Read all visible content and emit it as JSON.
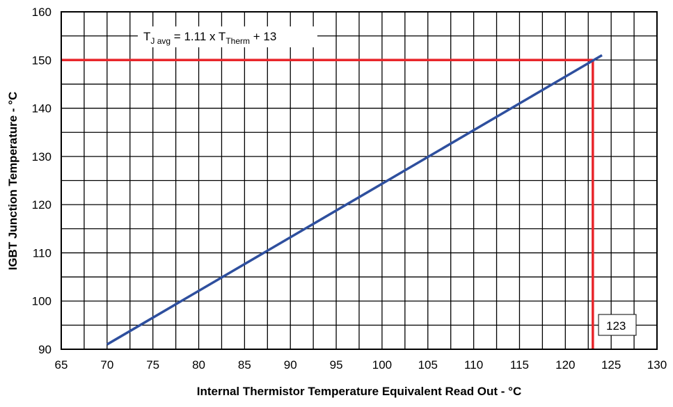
{
  "chart_data": {
    "type": "line",
    "xlabel": "Internal Thermistor Temperature Equivalent Read Out - °C",
    "ylabel": "IGBT  Junction Temperature - °C",
    "xlim": [
      65,
      130
    ],
    "ylim": [
      90,
      160
    ],
    "x_ticks": [
      65,
      70,
      75,
      80,
      85,
      90,
      95,
      100,
      105,
      110,
      115,
      120,
      125,
      130
    ],
    "y_ticks": [
      90,
      100,
      110,
      120,
      130,
      140,
      150,
      160
    ],
    "x_grid_step": 2.5,
    "y_grid_step": 5,
    "grid": true,
    "series": [
      {
        "x": [
          70,
          124
        ],
        "y": [
          91,
          151
        ],
        "color": "#2e4f9e"
      }
    ],
    "reference_lines": [
      {
        "orientation": "horizontal",
        "y": 150,
        "x_from": 65,
        "x_to": 123,
        "color": "#e8262b"
      },
      {
        "orientation": "vertical",
        "x": 123,
        "y_from": 90,
        "y_to": 150,
        "color": "#e8262b"
      }
    ],
    "equation": {
      "t": "T",
      "j_sub": "J avg",
      "middle": " = 1.11 x T",
      "therm_sub": "Therm",
      "end": " + 13"
    },
    "marker_label": "123"
  }
}
